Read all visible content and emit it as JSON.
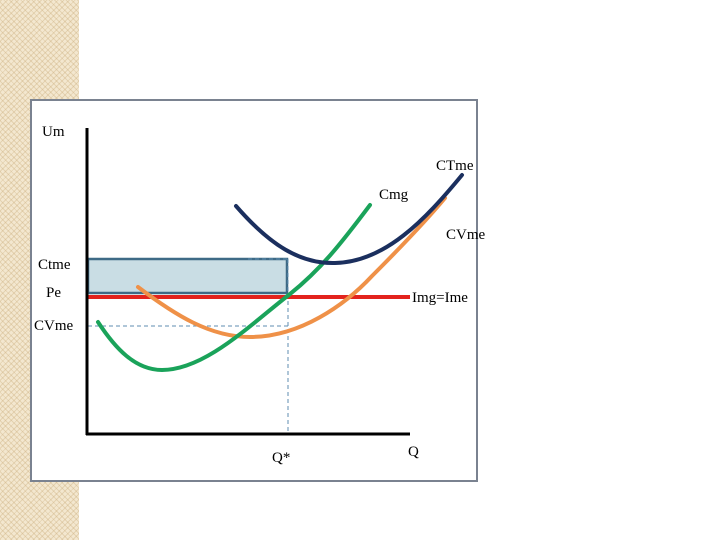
{
  "labels": {
    "y_axis": "Um",
    "x_axis": "Q",
    "q_star": "Q*",
    "ctme_curve": "CTme",
    "cmg_curve": "Cmg",
    "cvme_curve": "CVme",
    "img_ime_line": "Img=Ime",
    "ctme_level": "Ctme",
    "pe_level": "Pe",
    "cvme_level": "CVme"
  },
  "colors": {
    "ctme": "#1b2f5e",
    "cmg": "#1aa35a",
    "cvme": "#ef9148",
    "price_line": "#e3231d",
    "profit_rect_fill": "#c9dde4",
    "profit_rect_stroke": "#3e6a86",
    "axes": "#000000",
    "guides": "#5f8db0"
  }
}
